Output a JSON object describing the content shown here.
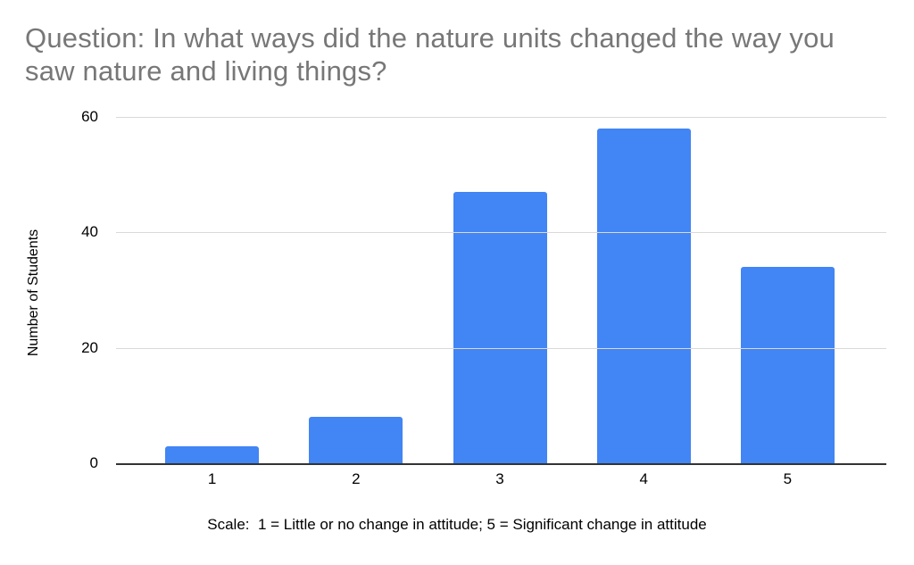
{
  "chart_data": {
    "type": "bar",
    "title": "Question: In what ways did the nature units changed the way you saw nature and living things?",
    "categories": [
      "1",
      "2",
      "3",
      "4",
      "5"
    ],
    "values": [
      3,
      8,
      47,
      58,
      34
    ],
    "xlabel": "Scale:  1 = Little or no change in attitude; 5 = Significant change in attitude",
    "ylabel": "Number of Students",
    "ylim": [
      0,
      60
    ],
    "yticks": [
      0,
      20,
      40,
      60
    ],
    "grid": true,
    "legend": "none",
    "colors": {
      "bar": "#4285f4",
      "gridline": "#d9d9d9",
      "axis_baseline": "#333333",
      "title_text": "#777777",
      "tick_text": "#000000"
    }
  }
}
